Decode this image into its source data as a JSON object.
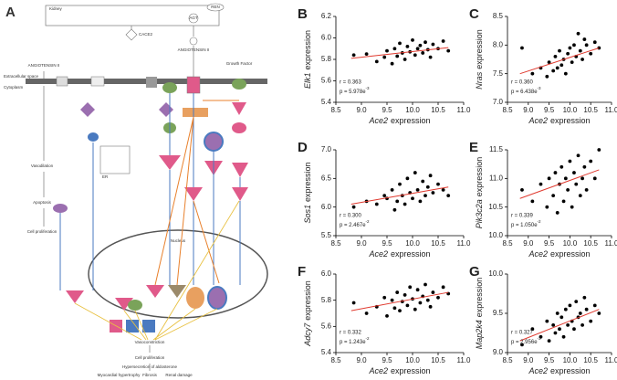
{
  "diagram": {
    "panel": "A",
    "kidney": "Kidney",
    "ren": "REN",
    "agt": "AGT",
    "cace2": "CACE2",
    "ang": "ANGIOTENSIN II",
    "ang_left": "ANGIOTENSIN II",
    "growth": "Growth Factor",
    "extracellular": "Extracellular space",
    "cytoplasm": "Cytoplasm",
    "nucleus": "Nucleus",
    "er": "ER",
    "vasodilation": "Vasodilation",
    "apoptosis": "Apoptosis",
    "cellprolif_left": "Cell proliferation",
    "vasoconstriction": "Vasoconstriction",
    "cellprolif": "Cell proliferation",
    "hypersecretion": "Hypersecretion of aldosterone",
    "myocardial": "Myocardial hypertrophy",
    "fibrosis": "Fibrosis",
    "renal": "Renal damage"
  },
  "chart_data": [
    {
      "type": "scatter",
      "panel": "B",
      "ylabel": {
        "gene": "Elk1",
        "rest": "expression"
      },
      "xlabel": {
        "gene": "Ace2",
        "rest": "expression"
      },
      "r": "r = 0.363",
      "p_base": "p = 5.978e",
      "p_exp": "-3",
      "color": "#000000",
      "fit_color": "#e03a2f",
      "x": [
        8.85,
        9.1,
        9.3,
        9.45,
        9.5,
        9.6,
        9.65,
        9.7,
        9.75,
        9.8,
        9.85,
        9.9,
        9.95,
        10.0,
        10.05,
        10.1,
        10.15,
        10.2,
        10.25,
        10.3,
        10.35,
        10.4,
        10.5,
        10.6,
        10.7
      ],
      "y": [
        5.84,
        5.85,
        5.78,
        5.82,
        5.88,
        5.76,
        5.9,
        5.83,
        5.95,
        5.86,
        5.8,
        5.92,
        5.87,
        5.98,
        5.84,
        5.9,
        5.93,
        5.86,
        5.96,
        5.89,
        5.82,
        5.94,
        5.9,
        5.97,
        5.88
      ],
      "fit": {
        "x": [
          8.8,
          10.7
        ],
        "y": [
          5.81,
          5.91
        ]
      },
      "xlim": [
        8.5,
        11.0
      ],
      "xticks": [
        8.5,
        {
          "value": 9.0,
          "label": "9.0"
        },
        9.5,
        {
          "value": 10.0,
          "label": "10.0"
        },
        10.5,
        {
          "value": 11.0,
          "label": "11.0"
        }
      ],
      "ylim": [
        5.4,
        6.2
      ],
      "yticks": [
        5.4,
        5.6,
        5.8,
        {
          "value": 6.0,
          "label": "6.0"
        },
        6.2
      ]
    },
    {
      "type": "scatter",
      "panel": "C",
      "ylabel": {
        "gene": "Nras",
        "rest": "expression"
      },
      "xlabel": {
        "gene": "Ace2",
        "rest": "expression"
      },
      "r": "r = 0.360",
      "p_base": "p = 6.438e",
      "p_exp": "-3",
      "color": "#000000",
      "fit_color": "#e03a2f",
      "x": [
        8.85,
        9.1,
        9.3,
        9.45,
        9.5,
        9.6,
        9.65,
        9.7,
        9.75,
        9.8,
        9.85,
        9.9,
        9.95,
        10.0,
        10.05,
        10.1,
        10.15,
        10.2,
        10.25,
        10.3,
        10.35,
        10.4,
        10.5,
        10.6,
        10.7
      ],
      "y": [
        7.95,
        7.5,
        7.6,
        7.45,
        7.7,
        7.55,
        7.8,
        7.6,
        7.9,
        7.65,
        7.75,
        7.5,
        7.85,
        7.95,
        7.7,
        8.0,
        7.8,
        8.2,
        7.9,
        7.75,
        8.1,
        8.0,
        7.85,
        8.05,
        7.95
      ],
      "fit": {
        "x": [
          8.8,
          10.7
        ],
        "y": [
          7.5,
          7.95
        ]
      },
      "xlim": [
        8.5,
        11.0
      ],
      "xticks": [
        8.5,
        {
          "value": 9.0,
          "label": "9.0"
        },
        9.5,
        {
          "value": 10.0,
          "label": "10.0"
        },
        10.5,
        {
          "value": 11.0,
          "label": "11.0"
        }
      ],
      "ylim": [
        7.0,
        8.5
      ],
      "yticks": [
        {
          "value": 7.0,
          "label": "7.0"
        },
        7.5,
        {
          "value": 8.0,
          "label": "8.0"
        },
        8.5
      ]
    },
    {
      "type": "scatter",
      "panel": "D",
      "ylabel": {
        "gene": "Sos1",
        "rest": "expression"
      },
      "xlabel": {
        "gene": "Ace2",
        "rest": "expression"
      },
      "r": "r = 0.300",
      "p_base": "p = 2.467e",
      "p_exp": "-2",
      "color": "#000000",
      "fit_color": "#e03a2f",
      "x": [
        8.85,
        9.1,
        9.3,
        9.45,
        9.5,
        9.6,
        9.65,
        9.7,
        9.75,
        9.8,
        9.85,
        9.9,
        9.95,
        10.0,
        10.05,
        10.1,
        10.15,
        10.2,
        10.25,
        10.3,
        10.35,
        10.4,
        10.5,
        10.6,
        10.7
      ],
      "y": [
        6.0,
        6.1,
        6.05,
        6.2,
        6.15,
        6.3,
        5.95,
        6.1,
        6.4,
        6.2,
        6.05,
        6.5,
        6.25,
        6.15,
        6.6,
        6.3,
        6.1,
        6.45,
        6.2,
        6.35,
        6.55,
        6.25,
        6.4,
        6.3,
        6.2
      ],
      "fit": {
        "x": [
          8.8,
          10.7
        ],
        "y": [
          6.05,
          6.35
        ]
      },
      "xlim": [
        8.5,
        11.0
      ],
      "xticks": [
        8.5,
        {
          "value": 9.0,
          "label": "9.0"
        },
        9.5,
        {
          "value": 10.0,
          "label": "10.0"
        },
        10.5,
        {
          "value": 11.0,
          "label": "11.0"
        }
      ],
      "ylim": [
        5.5,
        7.0
      ],
      "yticks": [
        5.5,
        {
          "value": 6.0,
          "label": "6.0"
        },
        6.5,
        {
          "value": 7.0,
          "label": "7.0"
        }
      ]
    },
    {
      "type": "scatter",
      "panel": "E",
      "ylabel": {
        "gene": "Pik3c2a",
        "rest": "expression"
      },
      "xlabel": {
        "gene": "Ace2",
        "rest": "expression"
      },
      "r": "r = 0.339",
      "p_base": "p = 1.050e",
      "p_exp": "-2",
      "color": "#000000",
      "fit_color": "#e03a2f",
      "x": [
        8.85,
        9.1,
        9.3,
        9.45,
        9.5,
        9.6,
        9.65,
        9.7,
        9.75,
        9.8,
        9.85,
        9.9,
        9.95,
        10.0,
        10.05,
        10.1,
        10.15,
        10.2,
        10.25,
        10.3,
        10.35,
        10.4,
        10.5,
        10.6,
        10.7
      ],
      "y": [
        10.8,
        10.6,
        10.9,
        10.5,
        11.0,
        10.7,
        11.1,
        10.4,
        10.9,
        11.2,
        10.6,
        11.0,
        10.8,
        11.3,
        10.5,
        11.1,
        10.9,
        11.4,
        10.7,
        11.0,
        11.2,
        10.8,
        11.3,
        11.0,
        11.5
      ],
      "fit": {
        "x": [
          8.8,
          10.7
        ],
        "y": [
          10.65,
          11.15
        ]
      },
      "xlim": [
        8.5,
        11.0
      ],
      "xticks": [
        8.5,
        {
          "value": 9.0,
          "label": "9.0"
        },
        9.5,
        {
          "value": 10.0,
          "label": "10.0"
        },
        10.5,
        {
          "value": 11.0,
          "label": "11.0"
        }
      ],
      "ylim": [
        10.0,
        11.5
      ],
      "yticks": [
        {
          "value": 10.0,
          "label": "10.0"
        },
        10.5,
        {
          "value": 11.0,
          "label": "11.0"
        },
        11.5
      ]
    },
    {
      "type": "scatter",
      "panel": "F",
      "ylabel": {
        "gene": "Adcy7",
        "rest": "expression"
      },
      "xlabel": {
        "gene": "Ace2",
        "rest": "expression"
      },
      "r": "r = 0.332",
      "p_base": "p = 1.243e",
      "p_exp": "-2",
      "color": "#000000",
      "fit_color": "#e03a2f",
      "x": [
        8.85,
        9.1,
        9.3,
        9.45,
        9.5,
        9.6,
        9.65,
        9.7,
        9.75,
        9.8,
        9.85,
        9.9,
        9.95,
        10.0,
        10.05,
        10.1,
        10.15,
        10.2,
        10.25,
        10.3,
        10.35,
        10.4,
        10.5,
        10.6,
        10.7
      ],
      "y": [
        5.78,
        5.7,
        5.75,
        5.82,
        5.68,
        5.8,
        5.74,
        5.86,
        5.72,
        5.79,
        5.84,
        5.76,
        5.9,
        5.81,
        5.73,
        5.88,
        5.78,
        5.83,
        5.92,
        5.8,
        5.75,
        5.86,
        5.82,
        5.9,
        5.85
      ],
      "fit": {
        "x": [
          8.8,
          10.7
        ],
        "y": [
          5.72,
          5.86
        ]
      },
      "xlim": [
        8.5,
        11.0
      ],
      "xticks": [
        8.5,
        {
          "value": 9.0,
          "label": "9.0"
        },
        9.5,
        {
          "value": 10.0,
          "label": "10.0"
        },
        10.5,
        {
          "value": 11.0,
          "label": "11.0"
        }
      ],
      "ylim": [
        5.4,
        6.0
      ],
      "yticks": [
        5.4,
        5.6,
        5.8,
        {
          "value": 6.0,
          "label": "6.0"
        }
      ]
    },
    {
      "type": "scatter",
      "panel": "G",
      "ylabel": {
        "gene": "Map2k4",
        "rest": "expression"
      },
      "xlabel": {
        "gene": "Ace2",
        "rest": "expression"
      },
      "r": "r = 0.327",
      "p_base": "p = 2.956e",
      "p_exp": "-3",
      "color": "#000000",
      "fit_color": "#e03a2f",
      "x": [
        8.85,
        9.1,
        9.3,
        9.45,
        9.5,
        9.6,
        9.65,
        9.7,
        9.75,
        9.8,
        9.85,
        9.9,
        9.95,
        10.0,
        10.05,
        10.1,
        10.15,
        10.2,
        10.25,
        10.3,
        10.35,
        10.4,
        10.5,
        10.6,
        10.7
      ],
      "y": [
        9.1,
        9.3,
        9.2,
        9.4,
        9.15,
        9.35,
        9.25,
        9.5,
        9.3,
        9.45,
        9.2,
        9.55,
        9.35,
        9.6,
        9.4,
        9.3,
        9.65,
        9.45,
        9.5,
        9.35,
        9.7,
        9.55,
        9.4,
        9.6,
        9.5
      ],
      "fit": {
        "x": [
          8.8,
          10.7
        ],
        "y": [
          9.15,
          9.55
        ]
      },
      "xlim": [
        8.5,
        11.0
      ],
      "xticks": [
        8.5,
        {
          "value": 9.0,
          "label": "9.0"
        },
        9.5,
        {
          "value": 10.0,
          "label": "10.0"
        },
        10.5,
        {
          "value": 11.0,
          "label": "11.0"
        }
      ],
      "ylim": [
        9.0,
        10.0
      ],
      "yticks": [
        {
          "value": 9.0,
          "label": "9.0"
        },
        9.5,
        {
          "value": 10.0,
          "label": "10.0"
        }
      ]
    }
  ]
}
